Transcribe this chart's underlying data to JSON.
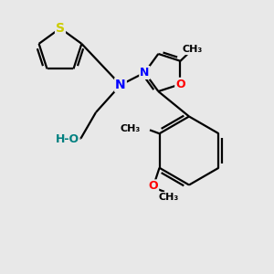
{
  "bg_color": "#e8e8e8",
  "bond_color": "#000000",
  "bond_width": 1.6,
  "N_color": "#0000ff",
  "O_color": "#ff0000",
  "S_color": "#cccc00",
  "HO_color": "#008080",
  "figsize": [
    3.0,
    3.0
  ],
  "dpi": 100,
  "xlim": [
    0,
    10
  ],
  "ylim": [
    0,
    10
  ]
}
